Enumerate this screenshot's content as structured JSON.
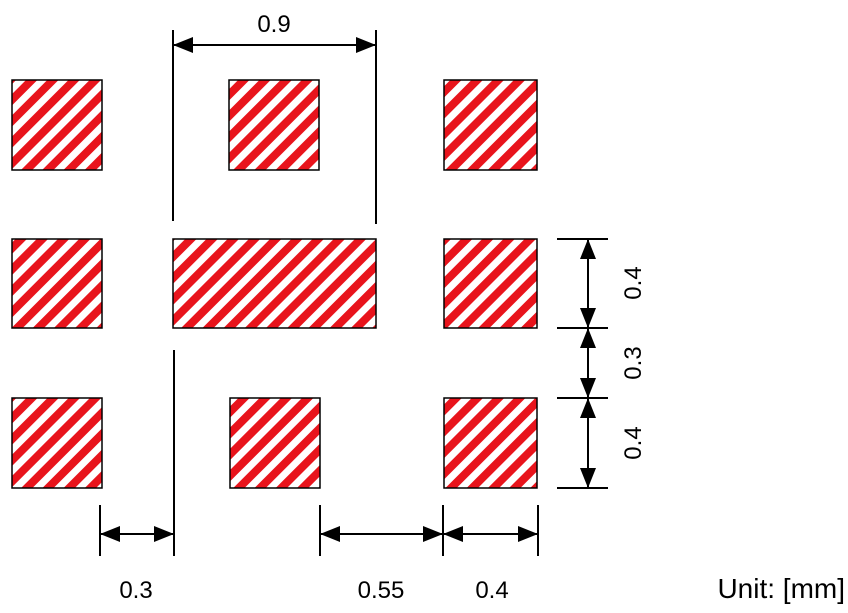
{
  "diagram": {
    "pad_pattern": {
      "stripe_color": "#e8141c",
      "background_color": "#ffffff",
      "outline_color": "#000000"
    },
    "pads": [
      {
        "id": "pad-r1c1"
      },
      {
        "id": "pad-r1c2"
      },
      {
        "id": "pad-r1c3"
      },
      {
        "id": "pad-r2c1"
      },
      {
        "id": "pad-r2c2-wide"
      },
      {
        "id": "pad-r2c3"
      },
      {
        "id": "pad-r3c1"
      },
      {
        "id": "pad-r3c2"
      },
      {
        "id": "pad-r3c3"
      }
    ],
    "dimensions": {
      "top_width": "0.9",
      "right_pad_height_upper": "0.4",
      "right_gap": "0.3",
      "right_pad_height_lower": "0.4",
      "bottom_gap_left": "0.3",
      "bottom_gap_middle": "0.55",
      "bottom_pad_width": "0.4"
    },
    "unit_label": "Unit: [mm]"
  }
}
